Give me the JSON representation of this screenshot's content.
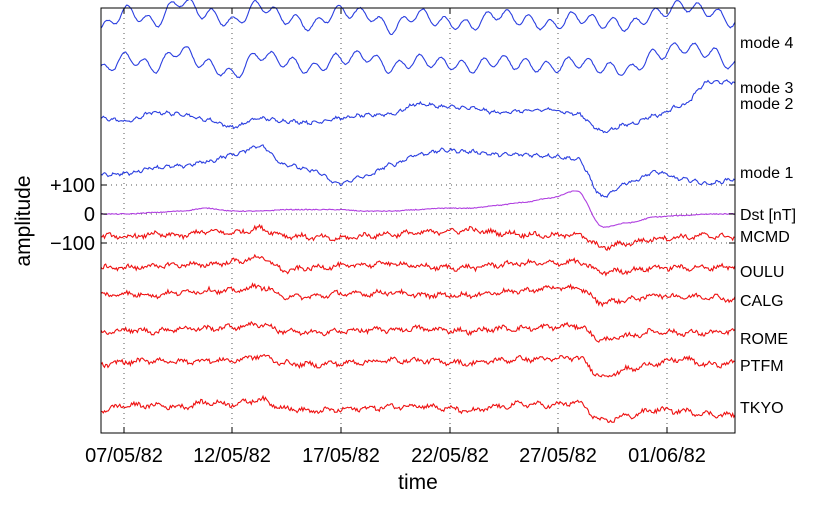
{
  "chart_data": {
    "type": "line",
    "title": "",
    "xlabel": "time",
    "ylabel": "amplitude",
    "x_ticks": [
      "07/05/82",
      "12/05/82",
      "17/05/82",
      "22/05/82",
      "27/05/82",
      "01/06/82"
    ],
    "xlim": [
      "06/05/82",
      "05/06/82"
    ],
    "y_ticks": [
      "+100",
      "0",
      "−100"
    ],
    "y_tick_values": [
      100,
      0,
      -100
    ],
    "ylim": [
      -865,
      810
    ],
    "grid": "dotted",
    "legend": "none",
    "series_label_position": "right",
    "series": [
      {
        "name": "mode 4",
        "color": "#2b3fe0",
        "values": [
          640,
          700,
          660,
          735,
          690,
          660,
          720,
          675,
          650,
          700,
          690,
          640,
          690,
          660,
          650,
          690,
          670,
          650,
          680,
          660,
          650,
          690,
          720,
          700,
          660
        ]
      },
      {
        "name": "mode 3",
        "color": "#2b3fe0",
        "values": [
          495,
          540,
          505,
          565,
          515,
          480,
          550,
          525,
          500,
          535,
          545,
          505,
          530,
          520,
          505,
          530,
          515,
          505,
          525,
          505,
          495,
          550,
          575,
          560,
          510
        ]
      },
      {
        "name": "mode 2",
        "color": "#2b3fe0",
        "values": [
          330,
          320,
          350,
          345,
          325,
          300,
          330,
          320,
          315,
          330,
          340,
          345,
          380,
          370,
          365,
          350,
          355,
          360,
          345,
          285,
          310,
          340,
          375,
          455,
          455
        ]
      },
      {
        "name": "mode 1",
        "color": "#2b3fe0",
        "values": [
          135,
          140,
          160,
          165,
          180,
          205,
          235,
          170,
          150,
          105,
          130,
          170,
          205,
          220,
          215,
          205,
          205,
          200,
          190,
          60,
          110,
          145,
          120,
          105,
          120
        ]
      },
      {
        "name": "Dst [nT]",
        "color": "#b040e0",
        "values": [
          0,
          0,
          5,
          10,
          20,
          10,
          10,
          15,
          15,
          15,
          10,
          10,
          15,
          20,
          20,
          30,
          40,
          55,
          80,
          -45,
          -30,
          -10,
          -5,
          0,
          0
        ]
      },
      {
        "name": "MCMD",
        "color": "#ee1111",
        "values": [
          -75,
          -80,
          -70,
          -75,
          -60,
          -65,
          -50,
          -75,
          -80,
          -85,
          -75,
          -70,
          -65,
          -60,
          -55,
          -65,
          -70,
          -75,
          -70,
          -115,
          -100,
          -85,
          -80,
          -75,
          -80
        ]
      },
      {
        "name": "OULU",
        "color": "#ee1111",
        "values": [
          -185,
          -185,
          -180,
          -175,
          -175,
          -165,
          -150,
          -195,
          -185,
          -180,
          -175,
          -170,
          -180,
          -185,
          -185,
          -175,
          -170,
          -170,
          -165,
          -200,
          -195,
          -185,
          -185,
          -185,
          -180
        ]
      },
      {
        "name": "CALG",
        "color": "#ee1111",
        "values": [
          -280,
          -275,
          -280,
          -270,
          -265,
          -265,
          -250,
          -285,
          -285,
          -275,
          -275,
          -270,
          -280,
          -280,
          -280,
          -270,
          -265,
          -255,
          -255,
          -305,
          -295,
          -280,
          -285,
          -285,
          -295
        ]
      },
      {
        "name": "ROME",
        "color": "#ee1111",
        "values": [
          -410,
          -400,
          -405,
          -395,
          -395,
          -390,
          -380,
          -405,
          -410,
          -405,
          -400,
          -400,
          -395,
          -400,
          -405,
          -395,
          -395,
          -390,
          -385,
          -435,
          -420,
          -405,
          -410,
          -410,
          -405
        ]
      },
      {
        "name": "PTFM",
        "color": "#ee1111",
        "values": [
          -520,
          -510,
          -505,
          -510,
          -505,
          -505,
          -490,
          -515,
          -520,
          -515,
          -510,
          -505,
          -505,
          -510,
          -515,
          -505,
          -500,
          -500,
          -495,
          -560,
          -535,
          -515,
          -500,
          -520,
          -515
        ]
      },
      {
        "name": "TKYO",
        "color": "#ee1111",
        "values": [
          -675,
          -660,
          -660,
          -665,
          -650,
          -655,
          -640,
          -670,
          -680,
          -675,
          -670,
          -665,
          -660,
          -670,
          -680,
          -665,
          -655,
          -660,
          -650,
          -715,
          -695,
          -675,
          -680,
          -690,
          -695
        ]
      }
    ]
  }
}
